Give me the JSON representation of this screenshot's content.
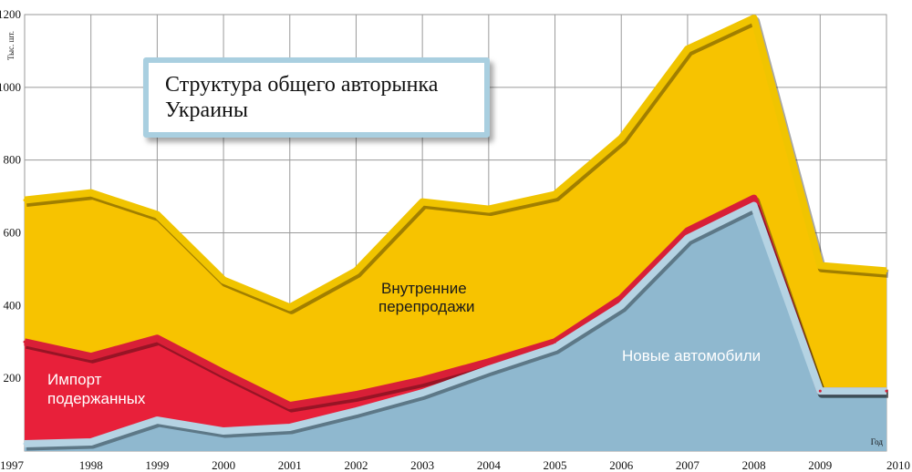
{
  "chart_data": {
    "type": "area",
    "title": "Структура общего авторынка\nУкраины",
    "ylabel": "Тыс. шт.",
    "xlabel": "Год",
    "x": [
      "1997",
      "1998",
      "1999",
      "2000",
      "2001",
      "2002",
      "2003",
      "2004",
      "2005",
      "2006",
      "2007",
      "2008",
      "2009",
      "2010"
    ],
    "ylim": [
      0,
      1200
    ],
    "yticks": [
      200,
      400,
      600,
      800,
      1000,
      1200
    ],
    "stacking": "cumulative",
    "grid": true,
    "series": [
      {
        "name": "Новые автомобили",
        "color": "#8fb8cf",
        "line_color": "#b5d3e3",
        "values": [
          20,
          25,
          85,
          55,
          65,
          110,
          160,
          225,
          285,
          400,
          585,
          675,
          165,
          165
        ]
      },
      {
        "name": "Импорт подержанных",
        "color": "#e8203a",
        "line_color": "#d81f37",
        "values": [
          300,
          260,
          310,
          215,
          125,
          155,
          195,
          245,
          300,
          420,
          605,
          695,
          165,
          165
        ]
      },
      {
        "name": "Внутренние перепродажи",
        "color": "#f7c300",
        "line_color": "#f0c400",
        "values": [
          690,
          710,
          650,
          470,
          395,
          495,
          685,
          665,
          705,
          860,
          1105,
          1190,
          510,
          495
        ]
      }
    ],
    "labels": [
      {
        "text": "Внутренние",
        "color": "#1a1a1a"
      },
      {
        "text": "перепродажи",
        "color": "#1a1a1a"
      },
      {
        "text": "Импорт",
        "color": "#ffffff"
      },
      {
        "text": "подержанных",
        "color": "#ffffff"
      },
      {
        "text": "Новые автомобили",
        "color": "#ffffff"
      }
    ]
  },
  "title_lines": [
    "Структура общего авторынка",
    "Украины"
  ]
}
